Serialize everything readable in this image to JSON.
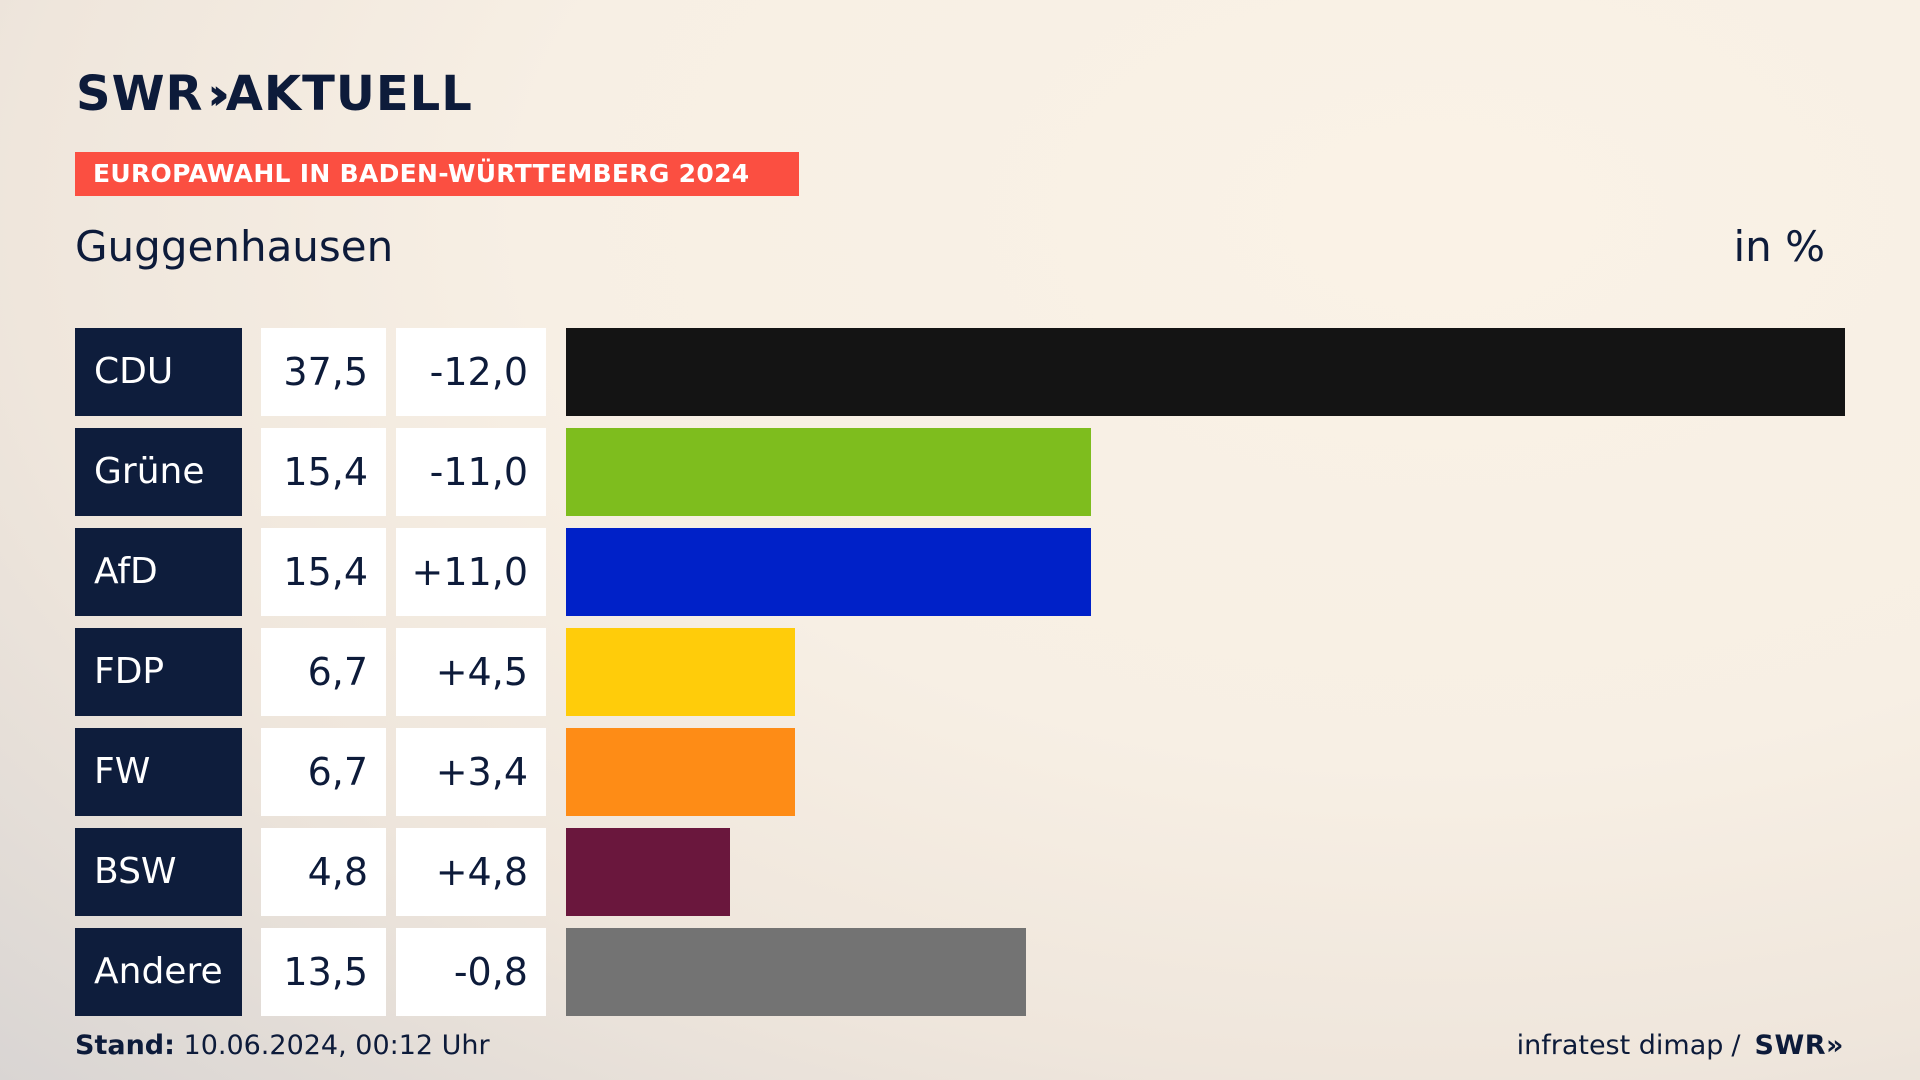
{
  "brand": {
    "logo_text": "SWR",
    "logo_suffix": "AKTUELL",
    "logo_chevrons": "»"
  },
  "banner": "EUROPAWAHL IN BADEN-WÜRTTEMBERG 2024",
  "place": "Guggenhausen",
  "unit": "in %",
  "footer": {
    "stand_label": "Stand:",
    "stand_value": "10.06.2024, 00:12 Uhr",
    "source": "infratest dimap",
    "separator": "/",
    "source_logo": "SWR»"
  },
  "chart_data": {
    "type": "bar",
    "orientation": "horizontal",
    "categories": [
      "CDU",
      "Grüne",
      "AfD",
      "FDP",
      "FW",
      "BSW",
      "Andere"
    ],
    "values": [
      37.5,
      15.4,
      15.4,
      6.7,
      6.7,
      4.8,
      13.5
    ],
    "value_labels": [
      "37,5",
      "15,4",
      "15,4",
      "6,7",
      "6,7",
      "4,8",
      "13,5"
    ],
    "diff_labels": [
      "-12,0",
      "-11,0",
      "+11,0",
      "+4,5",
      "+3,4",
      "+4,8",
      "-0,8"
    ],
    "diffs": [
      -12.0,
      -11.0,
      11.0,
      4.5,
      3.4,
      4.8,
      -0.8
    ],
    "colors": [
      "#141414",
      "#7ebd1e",
      "#0021c8",
      "#ffcc0a",
      "#fe8c16",
      "#6a173d",
      "#737373"
    ],
    "xlim": [
      0,
      37.5
    ]
  }
}
